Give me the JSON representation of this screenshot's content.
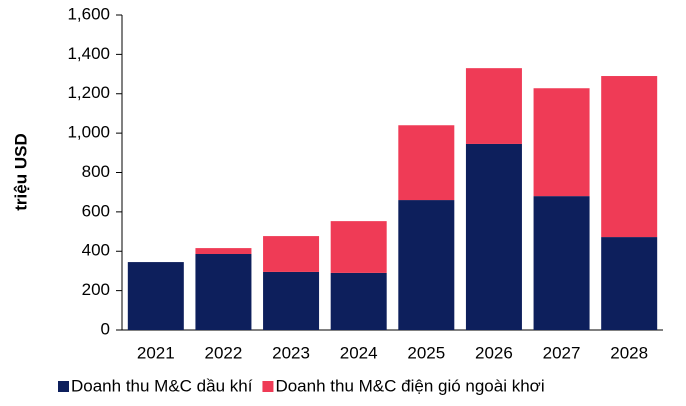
{
  "chart_data": {
    "type": "stacked_bar",
    "y_label": "triệu USD",
    "categories": [
      "2021",
      "2022",
      "2023",
      "2024",
      "2025",
      "2026",
      "2027",
      "2028"
    ],
    "series": [
      {
        "name": "Doanh thu M&C dầu khí",
        "color": "#0d1f5c",
        "values": [
          345,
          386,
          295,
          290,
          660,
          945,
          680,
          472
        ]
      },
      {
        "name": "Doanh thu M&C điện gió ngoài khơi",
        "color": "#ef3b56",
        "values": [
          0,
          30,
          182,
          263,
          380,
          385,
          548,
          818
        ]
      }
    ],
    "ylim": [
      0,
      1600
    ],
    "yticks": [
      0,
      200,
      400,
      600,
      800,
      {
        "value": 1000,
        "label": "1,000"
      },
      {
        "value": 1200,
        "label": "1,200"
      },
      {
        "value": 1400,
        "label": "1,400"
      },
      {
        "value": 1600,
        "label": "1,600"
      }
    ],
    "legend": "bottom"
  }
}
